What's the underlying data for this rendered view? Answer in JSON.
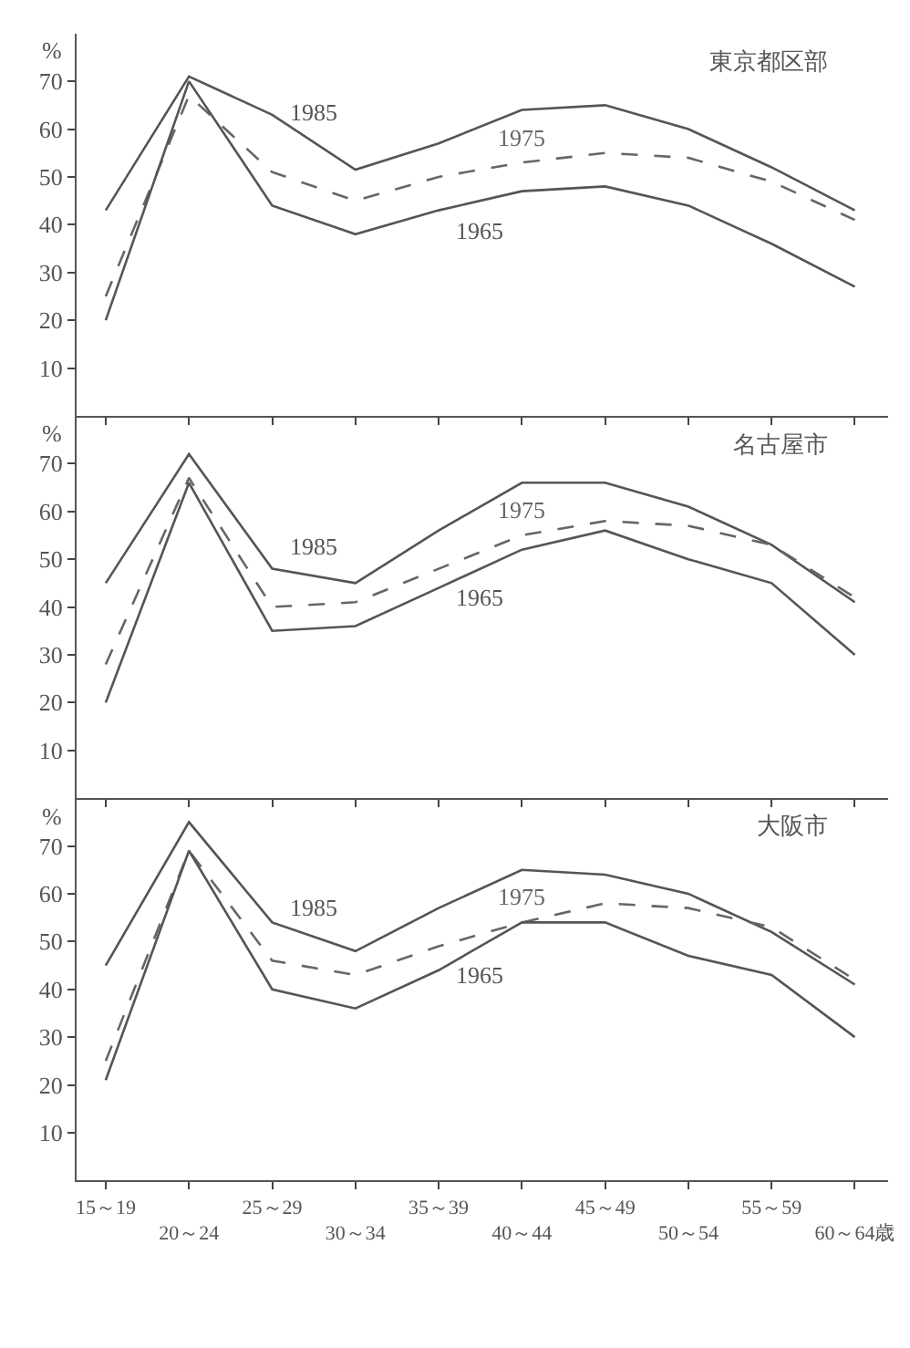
{
  "chart_data": [
    {
      "type": "line",
      "title": "東京都区部",
      "ylabel": "%",
      "categories": [
        "15～19",
        "20～24",
        "25～29",
        "30～34",
        "35～39",
        "40～44",
        "45～49",
        "50～54",
        "55～59",
        "60～64歳"
      ],
      "ylim": [
        0,
        80
      ],
      "yticks": [
        10,
        20,
        30,
        40,
        50,
        60,
        70
      ],
      "grid": false,
      "legend": false,
      "tick_labels": "y",
      "series": [
        {
          "name": "1985",
          "color": "#555555",
          "line_style": "solid",
          "values": [
            43,
            71,
            63,
            51.5,
            57,
            64,
            65,
            60,
            52,
            43
          ]
        },
        {
          "name": "1975",
          "color": "#666666",
          "line_style": "dashed",
          "values": [
            25,
            67,
            51,
            45,
            50,
            53,
            55,
            54,
            49,
            41
          ]
        },
        {
          "name": "1965",
          "color": "#555555",
          "line_style": "solid",
          "values": [
            20,
            70,
            44,
            38,
            43,
            47,
            48,
            44,
            36,
            27
          ]
        }
      ]
    },
    {
      "type": "line",
      "title": "名古屋市",
      "ylabel": "%",
      "categories": [
        "15～19",
        "20～24",
        "25～29",
        "30～34",
        "35～39",
        "40～44",
        "45～49",
        "50～54",
        "55～59",
        "60～64歳"
      ],
      "ylim": [
        0,
        80
      ],
      "yticks": [
        10,
        20,
        30,
        40,
        50,
        60,
        70
      ],
      "grid": false,
      "legend": false,
      "tick_labels": "y",
      "series": [
        {
          "name": "1985",
          "color": "#555555",
          "line_style": "solid",
          "values": [
            45,
            72,
            48,
            45,
            56,
            66,
            66,
            61,
            53,
            41
          ]
        },
        {
          "name": "1975",
          "color": "#666666",
          "line_style": "dashed",
          "values": [
            28,
            67,
            40,
            41,
            48,
            55,
            58,
            57,
            53,
            42
          ]
        },
        {
          "name": "1965",
          "color": "#555555",
          "line_style": "solid",
          "values": [
            20,
            66,
            35,
            36,
            44,
            52,
            56,
            50,
            45,
            30
          ]
        }
      ]
    },
    {
      "type": "line",
      "title": "大阪市",
      "ylabel": "%",
      "categories": [
        "15～19",
        "20～24",
        "25～29",
        "30～34",
        "35～39",
        "40～44",
        "45～49",
        "50～54",
        "55～59",
        "60～64歳"
      ],
      "ylim": [
        0,
        80
      ],
      "yticks": [
        10,
        20,
        30,
        40,
        50,
        60,
        70
      ],
      "grid": false,
      "legend": false,
      "series": [
        {
          "name": "1985",
          "color": "#555555",
          "line_style": "solid",
          "values": [
            45,
            75,
            54,
            48,
            57,
            65,
            64,
            60,
            52,
            41
          ]
        },
        {
          "name": "1975",
          "color": "#666666",
          "line_style": "dashed",
          "values": [
            25,
            69,
            46,
            43,
            49,
            54,
            58,
            57,
            53,
            42
          ]
        },
        {
          "name": "1965",
          "color": "#555555",
          "line_style": "solid",
          "values": [
            21,
            69,
            40,
            36,
            44,
            54,
            54,
            47,
            43,
            30
          ]
        }
      ]
    }
  ]
}
